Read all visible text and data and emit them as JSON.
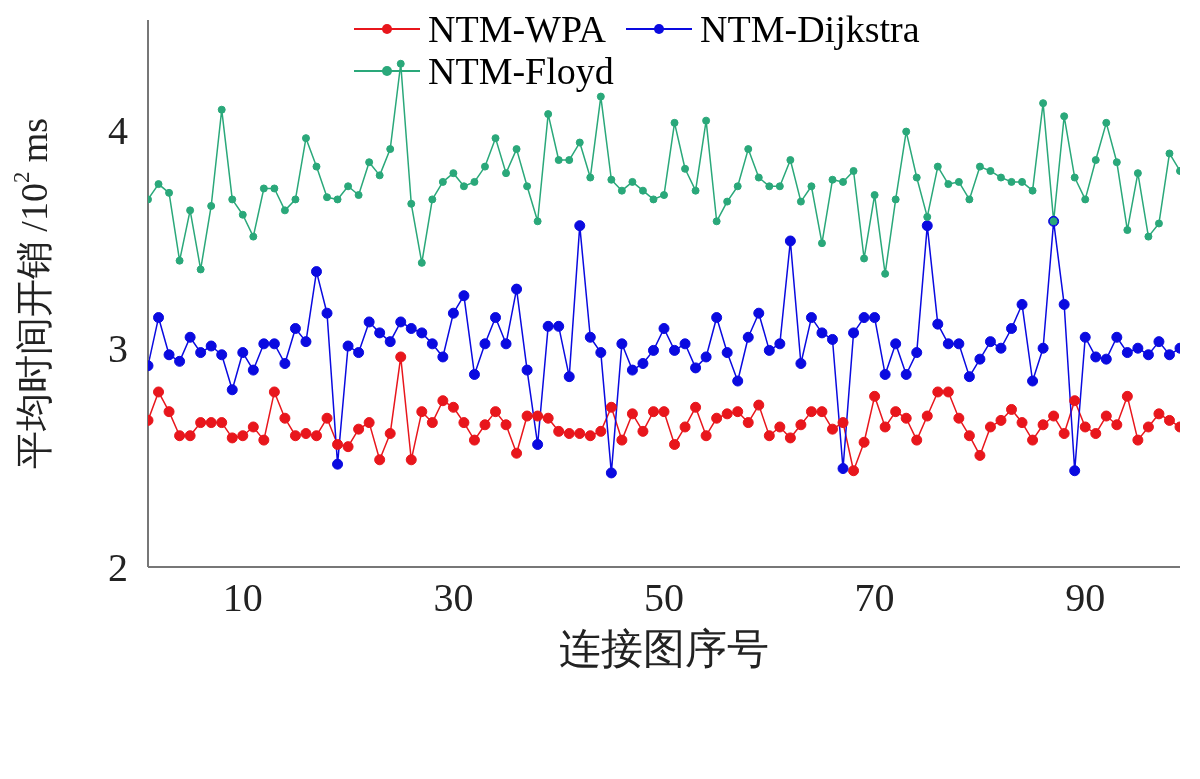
{
  "chart_data": {
    "type": "line",
    "xlabel": "连接图序号",
    "ylabel": "平均时间开销 /10$^{2}$ ms",
    "x": [
      1,
      2,
      3,
      4,
      5,
      6,
      7,
      8,
      9,
      10,
      11,
      12,
      13,
      14,
      15,
      16,
      17,
      18,
      19,
      20,
      21,
      22,
      23,
      24,
      25,
      26,
      27,
      28,
      29,
      30,
      31,
      32,
      33,
      34,
      35,
      36,
      37,
      38,
      39,
      40,
      41,
      42,
      43,
      44,
      45,
      46,
      47,
      48,
      49,
      50,
      51,
      52,
      53,
      54,
      55,
      56,
      57,
      58,
      59,
      60,
      61,
      62,
      63,
      64,
      65,
      66,
      67,
      68,
      69,
      70,
      71,
      72,
      73,
      74,
      75,
      76,
      77,
      78,
      79,
      80,
      81,
      82,
      83,
      84,
      85,
      86,
      87,
      88,
      89,
      90,
      91,
      92,
      93,
      94,
      95,
      96,
      97,
      98,
      99
    ],
    "xlim": [
      1,
      99
    ],
    "xticks": [
      10,
      30,
      50,
      70,
      90
    ],
    "ylim": [
      2,
      4.5
    ],
    "yticks": [
      2,
      3,
      4
    ],
    "legend": "top right",
    "marker": "circle",
    "line_style": "solid",
    "series": [
      {
        "name": "NTM-WPA",
        "color": "#e8161c",
        "values": [
          2.67,
          2.8,
          2.71,
          2.6,
          2.6,
          2.66,
          2.66,
          2.66,
          2.59,
          2.6,
          2.64,
          2.58,
          2.8,
          2.68,
          2.6,
          2.61,
          2.6,
          2.68,
          2.56,
          2.55,
          2.63,
          2.66,
          2.49,
          2.61,
          2.96,
          2.49,
          2.71,
          2.66,
          2.76,
          2.73,
          2.66,
          2.58,
          2.65,
          2.71,
          2.65,
          2.52,
          2.69,
          2.69,
          2.68,
          2.62,
          2.61,
          2.61,
          2.6,
          2.62,
          2.73,
          2.58,
          2.7,
          2.62,
          2.71,
          2.71,
          2.56,
          2.64,
          2.73,
          2.6,
          2.68,
          2.7,
          2.71,
          2.66,
          2.74,
          2.6,
          2.64,
          2.59,
          2.65,
          2.71,
          2.71,
          2.63,
          2.66,
          2.44,
          2.57,
          2.78,
          2.64,
          2.71,
          2.68,
          2.58,
          2.69,
          2.8,
          2.8,
          2.68,
          2.6,
          2.51,
          2.64,
          2.67,
          2.72,
          2.66,
          2.58,
          2.65,
          2.69,
          2.61,
          2.76,
          2.64,
          2.61,
          2.69,
          2.65,
          2.78,
          2.58,
          2.64,
          2.7,
          2.67,
          2.64
        ]
      },
      {
        "name": "NTM-Dijkstra",
        "color": "#0a0ae0",
        "values": [
          2.92,
          3.14,
          2.97,
          2.94,
          3.05,
          2.98,
          3.01,
          2.97,
          2.81,
          2.98,
          2.9,
          3.02,
          3.02,
          2.93,
          3.09,
          3.03,
          3.35,
          3.16,
          2.47,
          3.01,
          2.98,
          3.12,
          3.07,
          3.03,
          3.12,
          3.09,
          3.07,
          3.02,
          2.96,
          3.16,
          3.24,
          2.88,
          3.02,
          3.14,
          3.02,
          3.27,
          2.9,
          2.56,
          3.1,
          3.1,
          2.87,
          3.56,
          3.05,
          2.98,
          2.43,
          3.02,
          2.9,
          2.93,
          2.99,
          3.09,
          2.99,
          3.02,
          2.91,
          2.96,
          3.14,
          2.98,
          2.85,
          3.05,
          3.16,
          2.99,
          3.02,
          3.49,
          2.93,
          3.14,
          3.07,
          3.04,
          2.45,
          3.07,
          3.14,
          3.14,
          2.88,
          3.02,
          2.88,
          2.98,
          3.56,
          3.11,
          3.02,
          3.02,
          2.87,
          2.95,
          3.03,
          3.0,
          3.09,
          3.2,
          2.85,
          3.0,
          3.58,
          3.2,
          2.44,
          3.05,
          2.96,
          2.95,
          3.05,
          2.98,
          3.0,
          2.97,
          3.03,
          2.97,
          3.0
        ]
      },
      {
        "name": "NTM-Floyd",
        "color": "#2aa87a",
        "values": [
          3.68,
          3.75,
          3.71,
          3.4,
          3.63,
          3.36,
          3.65,
          4.09,
          3.68,
          3.61,
          3.51,
          3.73,
          3.73,
          3.63,
          3.68,
          3.96,
          3.83,
          3.69,
          3.68,
          3.74,
          3.7,
          3.85,
          3.79,
          3.91,
          4.3,
          3.66,
          3.39,
          3.68,
          3.76,
          3.8,
          3.74,
          3.76,
          3.83,
          3.96,
          3.8,
          3.91,
          3.74,
          3.58,
          4.07,
          3.86,
          3.86,
          3.94,
          3.78,
          4.15,
          3.77,
          3.72,
          3.76,
          3.72,
          3.68,
          3.7,
          4.03,
          3.82,
          3.72,
          4.04,
          3.58,
          3.67,
          3.74,
          3.91,
          3.78,
          3.74,
          3.74,
          3.86,
          3.67,
          3.74,
          3.48,
          3.77,
          3.76,
          3.81,
          3.41,
          3.7,
          3.34,
          3.68,
          3.99,
          3.78,
          3.6,
          3.83,
          3.75,
          3.76,
          3.68,
          3.83,
          3.81,
          3.78,
          3.76,
          3.76,
          3.72,
          4.12,
          3.58,
          4.06,
          3.78,
          3.68,
          3.86,
          4.03,
          3.85,
          3.54,
          3.8,
          3.51,
          3.57,
          3.89,
          3.81
        ]
      }
    ]
  }
}
